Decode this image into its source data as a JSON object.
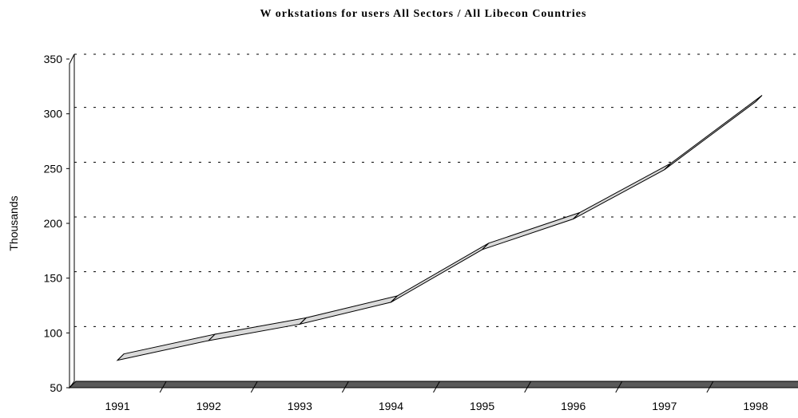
{
  "chart_data": {
    "type": "line",
    "title": "W orkstations for users All Sectors / All Libecon Countries",
    "xlabel": "",
    "ylabel": "Thousands",
    "categories": [
      "1991",
      "1992",
      "1993",
      "1994",
      "1995",
      "1996",
      "1997",
      "1998"
    ],
    "series": [
      {
        "values": [
          75,
          93,
          108,
          128,
          176,
          204,
          249,
          311
        ]
      }
    ],
    "ylim": [
      50,
      350
    ],
    "yticks": [
      "50",
      "100",
      "150",
      "200",
      "250",
      "300",
      "350"
    ],
    "grid": true,
    "legend": "none",
    "style": "3d-ribbon"
  },
  "colors": {
    "ribbon_top": "#d9d9d9",
    "floor": "#595959",
    "gridline": "#000000"
  }
}
